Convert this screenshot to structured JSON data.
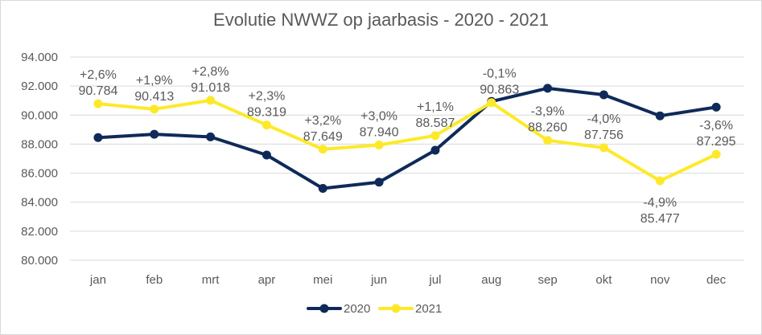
{
  "chart_data": {
    "type": "line",
    "title": "Evolutie NWWZ op jaarbasis - 2020 - 2021",
    "categories": [
      "jan",
      "feb",
      "mrt",
      "apr",
      "mei",
      "jun",
      "jul",
      "aug",
      "sep",
      "okt",
      "nov",
      "dec"
    ],
    "ylim": [
      80000,
      94000
    ],
    "yticks": [
      80000,
      82000,
      84000,
      86000,
      88000,
      90000,
      92000,
      94000
    ],
    "ytick_labels": [
      "80.000",
      "82.000",
      "84.000",
      "86.000",
      "88.000",
      "90.000",
      "92.000",
      "94.000"
    ],
    "grid": true,
    "legend": "bottom",
    "series": [
      {
        "name": "2020",
        "color": "#0f2a59",
        "values": [
          88450,
          88680,
          88500,
          87250,
          84950,
          85380,
          87580,
          90940,
          91850,
          91400,
          89950,
          90550
        ]
      },
      {
        "name": "2021",
        "color": "#fde92a",
        "values": [
          90784,
          90413,
          91018,
          89319,
          87649,
          87940,
          88587,
          90863,
          88260,
          87756,
          85477,
          87295
        ],
        "value_labels": [
          "90.784",
          "90.413",
          "91.018",
          "89.319",
          "87.649",
          "87.940",
          "88.587",
          "90.863",
          "88.260",
          "87.756",
          "85.477",
          "87.295"
        ],
        "change_labels": [
          "+2,6%",
          "+1,9%",
          "+2,8%",
          "+2,3%",
          "+3,2%",
          "+3,0%",
          "+1,1%",
          "-0,1%",
          "-3,9%",
          "-4,0%",
          "-4,9%",
          "-3,6%"
        ],
        "label_positions": [
          "above",
          "above",
          "above",
          "above",
          "above",
          "above",
          "above",
          "above",
          "above",
          "above",
          "below",
          "above"
        ]
      }
    ]
  }
}
